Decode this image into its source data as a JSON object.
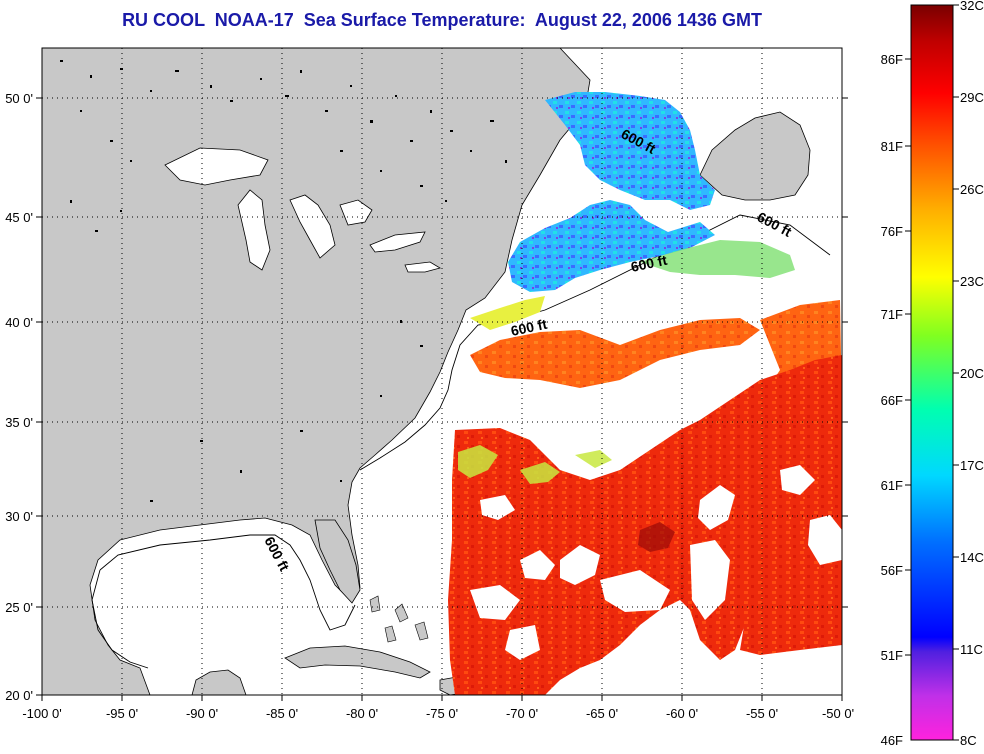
{
  "title": "RU COOL  NOAA-17  Sea Surface Temperature:  August 22, 2006 1436 GMT",
  "map": {
    "x_ticks": [
      "-100 0'",
      "-95 0'",
      "-90 0'",
      "-85 0'",
      "-80 0'",
      "-75 0'",
      "-70 0'",
      "-65 0'",
      "-60 0'",
      "-55 0'",
      "-50 0'"
    ],
    "y_ticks": [
      "50 0'",
      "45 0'",
      "40 0'",
      "35 0'",
      "30 0'",
      "25 0'",
      "20 0'"
    ],
    "lon_range": [
      -100,
      -50
    ],
    "lat_range": [
      20,
      52.5
    ],
    "grid": true,
    "contour_labels": [
      "600 ft",
      "600 ft",
      "600 ft",
      "600 ft",
      "600 ft"
    ],
    "colors": {
      "land": "#c8c8c8",
      "cloud": "#ffffff",
      "frame": "#000000"
    }
  },
  "colorbar": {
    "celsius_ticks": [
      "32C",
      "29C",
      "26C",
      "23C",
      "20C",
      "17C",
      "14C",
      "11C",
      "8C"
    ],
    "fahrenheit_ticks": [
      "86F",
      "81F",
      "76F",
      "71F",
      "66F",
      "61F",
      "56F",
      "51F",
      "46F"
    ],
    "range_c": [
      8,
      32
    ],
    "colors": [
      "#ff22dd",
      "#8a2be2",
      "#0000ff",
      "#0080ff",
      "#00e0ff",
      "#00ff90",
      "#9aff00",
      "#ffff00",
      "#ffa500",
      "#ff4000",
      "#ff0000",
      "#b00000",
      "#7a0000"
    ]
  }
}
